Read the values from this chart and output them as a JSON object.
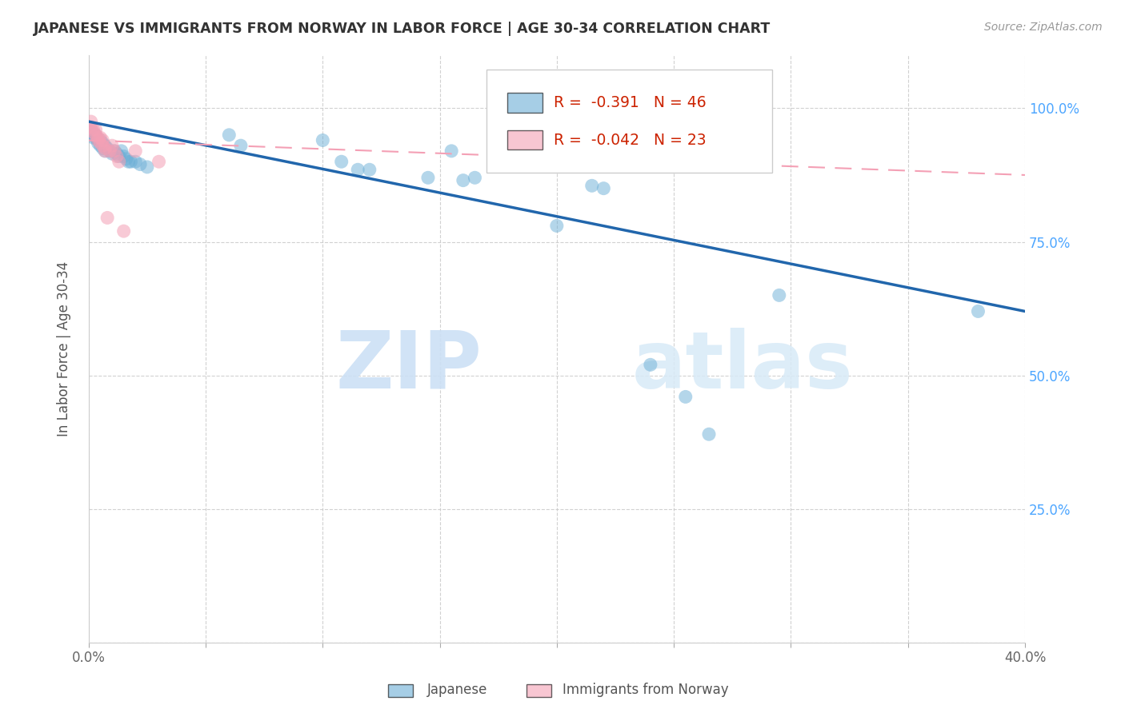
{
  "title": "JAPANESE VS IMMIGRANTS FROM NORWAY IN LABOR FORCE | AGE 30-34 CORRELATION CHART",
  "source": "Source: ZipAtlas.com",
  "ylabel": "In Labor Force | Age 30-34",
  "xlim": [
    0.0,
    0.4
  ],
  "ylim": [
    0.0,
    1.1
  ],
  "legend_r_blue": "-0.391",
  "legend_n_blue": "46",
  "legend_r_pink": "-0.042",
  "legend_n_pink": "23",
  "blue_color": "#6baed6",
  "pink_color": "#f4a0b5",
  "blue_line_color": "#2166ac",
  "pink_line_color": "#f4a0b5",
  "watermark_zip": "ZIP",
  "watermark_atlas": "atlas",
  "blue_scatter_x": [
    0.001,
    0.001,
    0.002,
    0.002,
    0.003,
    0.003,
    0.004,
    0.004,
    0.005,
    0.005,
    0.006,
    0.006,
    0.007,
    0.007,
    0.008,
    0.009,
    0.01,
    0.011,
    0.012,
    0.013,
    0.014,
    0.015,
    0.016,
    0.017,
    0.018,
    0.02,
    0.022,
    0.025,
    0.06,
    0.065,
    0.1,
    0.108,
    0.115,
    0.12,
    0.145,
    0.155,
    0.16,
    0.165,
    0.2,
    0.215,
    0.22,
    0.24,
    0.255,
    0.265,
    0.295,
    0.38
  ],
  "blue_scatter_y": [
    0.96,
    0.955,
    0.95,
    0.945,
    0.95,
    0.945,
    0.94,
    0.935,
    0.94,
    0.93,
    0.935,
    0.925,
    0.93,
    0.92,
    0.925,
    0.92,
    0.915,
    0.92,
    0.915,
    0.91,
    0.92,
    0.91,
    0.905,
    0.9,
    0.9,
    0.9,
    0.895,
    0.89,
    0.95,
    0.93,
    0.94,
    0.9,
    0.885,
    0.885,
    0.87,
    0.92,
    0.865,
    0.87,
    0.78,
    0.855,
    0.85,
    0.52,
    0.46,
    0.39,
    0.65,
    0.62
  ],
  "pink_scatter_x": [
    0.001,
    0.001,
    0.002,
    0.002,
    0.003,
    0.003,
    0.004,
    0.004,
    0.005,
    0.005,
    0.006,
    0.006,
    0.007,
    0.007,
    0.008,
    0.009,
    0.01,
    0.011,
    0.012,
    0.013,
    0.015,
    0.02,
    0.03
  ],
  "pink_scatter_y": [
    0.975,
    0.965,
    0.96,
    0.955,
    0.96,
    0.95,
    0.945,
    0.94,
    0.945,
    0.935,
    0.94,
    0.93,
    0.925,
    0.92,
    0.795,
    0.92,
    0.93,
    0.92,
    0.91,
    0.9,
    0.77,
    0.92,
    0.9
  ],
  "blue_trendline_x": [
    0.0,
    0.4
  ],
  "blue_trendline_y": [
    0.975,
    0.62
  ],
  "pink_trendline_x": [
    0.0,
    0.4
  ],
  "pink_trendline_y": [
    0.94,
    0.875
  ]
}
